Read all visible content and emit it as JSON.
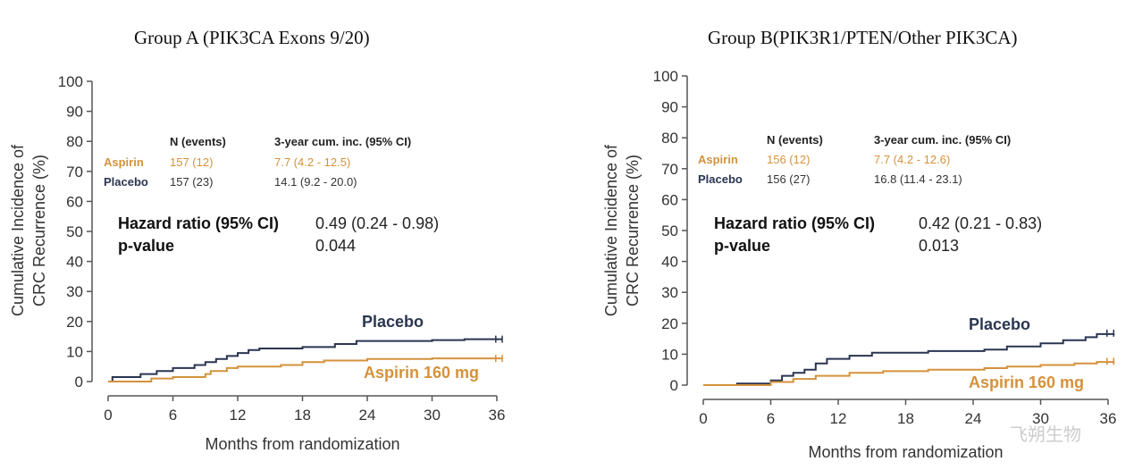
{
  "colors": {
    "placebo": "#2a3550",
    "aspirin": "#d4923c",
    "axis": "#555555"
  },
  "watermark": "飞朔生物",
  "chart_data": [
    {
      "type": "line",
      "title": "Group A (PIK3CA Exons 9/20)",
      "xlabel": "Months from randomization",
      "ylabel_lines": [
        "Cumulative Incidence of",
        "CRC Recurrence (%)"
      ],
      "xlim": [
        0,
        36
      ],
      "ylim": [
        0,
        100
      ],
      "xticks": [
        0,
        6,
        12,
        18,
        24,
        30,
        36
      ],
      "yticks": [
        0,
        10,
        20,
        30,
        40,
        50,
        60,
        70,
        80,
        90,
        100
      ],
      "table": {
        "headers": [
          "N (events)",
          "3-year cum. inc. (95% CI)"
        ],
        "rows": [
          {
            "arm": "Aspirin",
            "n": "157 (12)",
            "ci": "7.7 (4.2 - 12.5)",
            "color": "#d4923c"
          },
          {
            "arm": "Placebo",
            "n": "157 (23)",
            "ci": "14.1 (9.2 - 20.0)",
            "color": "#2a3550"
          }
        ]
      },
      "hr_label": "Hazard ratio (95% CI)",
      "hr_value": "0.49 (0.24 - 0.98)",
      "p_label": "p-value",
      "p_value": "0.044",
      "series": [
        {
          "name": "Placebo",
          "color": "#2a3550",
          "points": [
            [
              0,
              0
            ],
            [
              0.4,
              1.5
            ],
            [
              3,
              2.5
            ],
            [
              4.5,
              3.5
            ],
            [
              6,
              4.5
            ],
            [
              8,
              5.5
            ],
            [
              9,
              6.5
            ],
            [
              10,
              7.5
            ],
            [
              11,
              8.5
            ],
            [
              12,
              9.5
            ],
            [
              13,
              10.5
            ],
            [
              14,
              11.0
            ],
            [
              18,
              11.5
            ],
            [
              21,
              12.5
            ],
            [
              23,
              13.5
            ],
            [
              30,
              13.8
            ],
            [
              33,
              14.1
            ],
            [
              36.5,
              14.1
            ]
          ]
        },
        {
          "name": "Aspirin 160 mg",
          "color": "#d4923c",
          "points": [
            [
              0,
              0
            ],
            [
              4,
              1.0
            ],
            [
              6,
              1.5
            ],
            [
              9,
              2.5
            ],
            [
              9.5,
              3.5
            ],
            [
              11,
              4.5
            ],
            [
              12,
              5.0
            ],
            [
              16,
              5.5
            ],
            [
              18,
              6.5
            ],
            [
              20,
              7.0
            ],
            [
              24,
              7.5
            ],
            [
              30,
              7.7
            ],
            [
              36.5,
              7.7
            ]
          ]
        }
      ]
    },
    {
      "type": "line",
      "title": "Group B(PIK3R1/PTEN/Other PIK3CA)",
      "xlabel": "Months from randomization",
      "ylabel_lines": [
        "Cumulative Incidence of",
        "CRC Recurrence (%)"
      ],
      "xlim": [
        0,
        36
      ],
      "ylim": [
        0,
        100
      ],
      "xticks": [
        0,
        6,
        12,
        18,
        24,
        30,
        36
      ],
      "yticks": [
        0,
        10,
        20,
        30,
        40,
        50,
        60,
        70,
        80,
        90,
        100
      ],
      "table": {
        "headers": [
          "N (events)",
          "3-year cum. inc. (95% CI)"
        ],
        "rows": [
          {
            "arm": "Aspirin",
            "n": "156 (12)",
            "ci": "7.7 (4.2 - 12.6)",
            "color": "#d4923c"
          },
          {
            "arm": "Placebo",
            "n": "156 (27)",
            "ci": "16.8 (11.4 - 23.1)",
            "color": "#2a3550"
          }
        ]
      },
      "hr_label": "Hazard ratio (95% CI)",
      "hr_value": "0.42 (0.21 - 0.83)",
      "p_label": "p-value",
      "p_value": "0.013",
      "series": [
        {
          "name": "Placebo",
          "color": "#2a3550",
          "points": [
            [
              0,
              0
            ],
            [
              3,
              0.5
            ],
            [
              6,
              1.5
            ],
            [
              7,
              3.0
            ],
            [
              8,
              4.0
            ],
            [
              9,
              5.0
            ],
            [
              10,
              7.0
            ],
            [
              11,
              8.5
            ],
            [
              13,
              9.5
            ],
            [
              15,
              10.5
            ],
            [
              20,
              11.0
            ],
            [
              25,
              11.5
            ],
            [
              27,
              12.5
            ],
            [
              30,
              13.5
            ],
            [
              32,
              14.5
            ],
            [
              34,
              15.5
            ],
            [
              35,
              16.5
            ],
            [
              36.5,
              16.8
            ]
          ]
        },
        {
          "name": "Aspirin 160 mg",
          "color": "#d4923c",
          "points": [
            [
              0,
              0
            ],
            [
              6,
              1.0
            ],
            [
              8,
              2.0
            ],
            [
              10,
              3.0
            ],
            [
              13,
              4.0
            ],
            [
              16,
              4.5
            ],
            [
              20,
              5.0
            ],
            [
              25,
              5.5
            ],
            [
              27,
              6.0
            ],
            [
              30,
              6.5
            ],
            [
              33,
              7.0
            ],
            [
              35,
              7.5
            ],
            [
              36.5,
              7.7
            ]
          ]
        }
      ]
    }
  ]
}
